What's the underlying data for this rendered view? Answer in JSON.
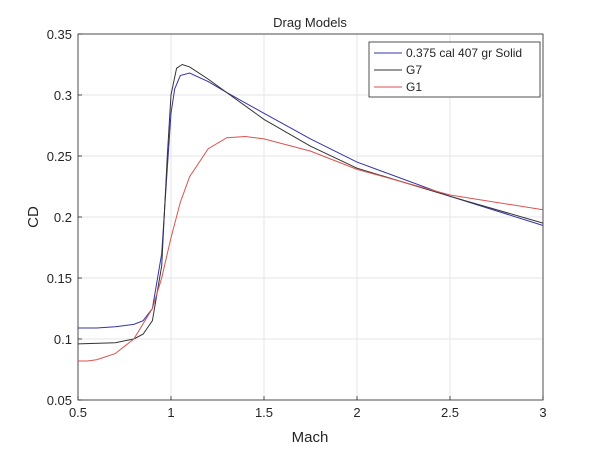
{
  "chart_data": {
    "type": "line",
    "title": "Drag Models",
    "xlabel": "Mach",
    "ylabel": "CD",
    "xlim": [
      0.5,
      3
    ],
    "ylim": [
      0.05,
      0.35
    ],
    "xticks": [
      "0.5",
      "1",
      "1.5",
      "2",
      "2.5",
      "3"
    ],
    "yticks": [
      "0.05",
      "0.1",
      "0.15",
      "0.2",
      "0.25",
      "0.3",
      "0.35"
    ],
    "grid": true,
    "legend_position": "top-right",
    "series": [
      {
        "name": "0.375 cal 407 gr Solid",
        "color": "#3333aa",
        "x": [
          0.5,
          0.6,
          0.7,
          0.8,
          0.85,
          0.9,
          0.95,
          0.98,
          1.0,
          1.02,
          1.05,
          1.1,
          1.2,
          1.3,
          1.5,
          1.75,
          2.0,
          2.5,
          3.0
        ],
        "y": [
          0.109,
          0.109,
          0.11,
          0.112,
          0.115,
          0.125,
          0.17,
          0.24,
          0.285,
          0.305,
          0.316,
          0.318,
          0.311,
          0.302,
          0.285,
          0.264,
          0.245,
          0.217,
          0.193
        ]
      },
      {
        "name": "G7",
        "color": "#333333",
        "x": [
          0.5,
          0.7,
          0.8,
          0.85,
          0.9,
          0.95,
          0.98,
          1.0,
          1.03,
          1.06,
          1.1,
          1.2,
          1.3,
          1.5,
          1.75,
          2.0,
          2.5,
          3.0
        ],
        "y": [
          0.096,
          0.097,
          0.1,
          0.104,
          0.115,
          0.16,
          0.25,
          0.3,
          0.322,
          0.325,
          0.323,
          0.313,
          0.302,
          0.28,
          0.258,
          0.24,
          0.217,
          0.195
        ]
      },
      {
        "name": "G1",
        "color": "#d9534f",
        "x": [
          0.5,
          0.55,
          0.6,
          0.7,
          0.8,
          0.9,
          0.95,
          1.0,
          1.05,
          1.1,
          1.2,
          1.3,
          1.4,
          1.5,
          1.75,
          2.0,
          2.5,
          3.0
        ],
        "y": [
          0.082,
          0.082,
          0.083,
          0.088,
          0.1,
          0.125,
          0.15,
          0.183,
          0.212,
          0.233,
          0.256,
          0.265,
          0.266,
          0.264,
          0.254,
          0.239,
          0.218,
          0.206
        ]
      }
    ]
  }
}
